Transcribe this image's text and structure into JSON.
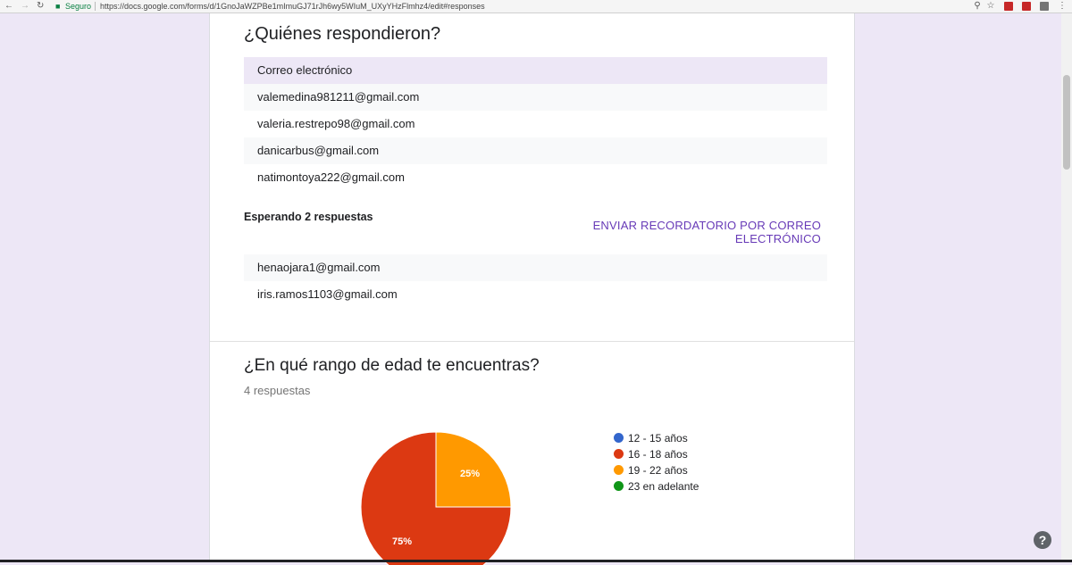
{
  "browser": {
    "secure_label": "Seguro",
    "url": "https://docs.google.com/forms/d/1GnoJaWZPBe1mImuGJ71rJh6wy5WIuM_UXyYHzFlmhz4/edit#responses"
  },
  "respondents": {
    "title": "¿Quiénes respondieron?",
    "column_header": "Correo electrónico",
    "emails": [
      "valemedina981211@gmail.com",
      "valeria.restrepo98@gmail.com",
      "danicarbus@gmail.com",
      "natimontoya222@gmail.com"
    ]
  },
  "waiting": {
    "label": "Esperando 2 respuestas",
    "remind_button": "ENVIAR RECORDATORIO POR CORREO ELECTRÓNICO",
    "emails": [
      "henaojara1@gmail.com",
      "iris.ramos1103@gmail.com"
    ]
  },
  "question": {
    "title": "¿En qué rango de edad te encuentras?",
    "response_count": "4 respuestas"
  },
  "chart_data": {
    "type": "pie",
    "categories": [
      "12 - 15 años",
      "16 - 18 años",
      "19 - 22 años",
      "23 en adelante"
    ],
    "values": [
      0,
      75,
      25,
      0
    ],
    "value_labels": [
      "",
      "75%",
      "25%",
      ""
    ],
    "colors": [
      "#3366cc",
      "#dc3912",
      "#ff9900",
      "#109618"
    ],
    "legend_position": "right"
  },
  "help_icon": "?"
}
